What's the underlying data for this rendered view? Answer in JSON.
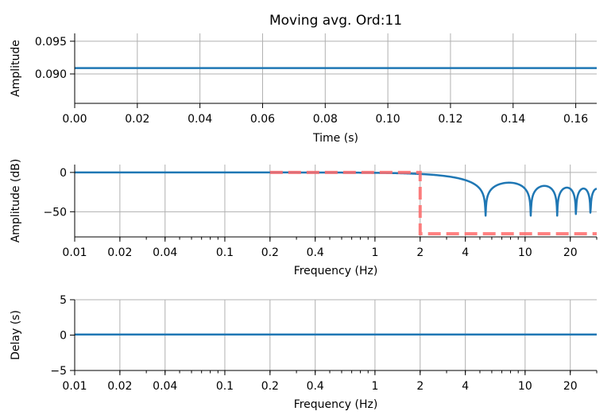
{
  "chart_data": [
    {
      "type": "line",
      "title": "Moving avg. Ord:11",
      "xlabel": "Time (s)",
      "ylabel": "Amplitude",
      "xlim": [
        0,
        0.1667
      ],
      "ylim": [
        0.0855,
        0.0962
      ],
      "xticks": [
        0.0,
        0.02,
        0.04,
        0.06,
        0.08,
        0.1,
        0.12,
        0.14,
        0.16
      ],
      "xtick_labels": [
        "0.00",
        "0.02",
        "0.04",
        "0.06",
        "0.08",
        "0.10",
        "0.12",
        "0.14",
        "0.16"
      ],
      "yticks": [
        0.09,
        0.095
      ],
      "ytick_labels": [
        "0.090",
        "0.095"
      ],
      "grid": true,
      "series": [
        {
          "color": "#1f77b4",
          "x": [
            0,
            0.1667
          ],
          "y": [
            0.0909,
            0.0909
          ]
        }
      ]
    },
    {
      "type": "line",
      "title": "",
      "xlabel": "Frequency (Hz)",
      "ylabel": "Amplitude (dB)",
      "x_scale": "log",
      "xlim": [
        0.01,
        30
      ],
      "ylim": [
        -82,
        10
      ],
      "xticks": [
        0.01,
        0.02,
        0.04,
        0.1,
        0.2,
        0.4,
        1,
        2,
        4,
        10,
        20
      ],
      "xtick_labels": [
        "0.01",
        "0.02",
        "0.04",
        "0.1",
        "0.2",
        "0.4",
        "1",
        "2",
        "4",
        "10",
        "20"
      ],
      "yticks": [
        0,
        -50
      ],
      "ytick_labels": [
        "0",
        "−50"
      ],
      "grid": true,
      "series": [
        {
          "color": "#1f77b4",
          "sample_rate_hz": 60,
          "order": 11
        },
        {
          "color": "#ff6b6b",
          "style": "dashed",
          "x": [
            0.2,
            2,
            2,
            30
          ],
          "y": [
            0,
            0,
            -78,
            -78
          ]
        }
      ]
    },
    {
      "type": "line",
      "title": "",
      "xlabel": "Frequency (Hz)",
      "ylabel": "Delay (s)",
      "x_scale": "log",
      "xlim": [
        0.01,
        30
      ],
      "ylim": [
        -5,
        5
      ],
      "xticks": [
        0.01,
        0.02,
        0.04,
        0.1,
        0.2,
        0.4,
        1,
        2,
        4,
        10,
        20
      ],
      "xtick_labels": [
        "0.01",
        "0.02",
        "0.04",
        "0.1",
        "0.2",
        "0.4",
        "1",
        "2",
        "4",
        "10",
        "20"
      ],
      "yticks": [
        5,
        0,
        -5
      ],
      "ytick_labels": [
        "5",
        "0",
        "−5"
      ],
      "grid": true,
      "series": [
        {
          "color": "#1f77b4",
          "x": [
            0.01,
            30
          ],
          "y": [
            0.083,
            0.083
          ]
        }
      ]
    }
  ]
}
